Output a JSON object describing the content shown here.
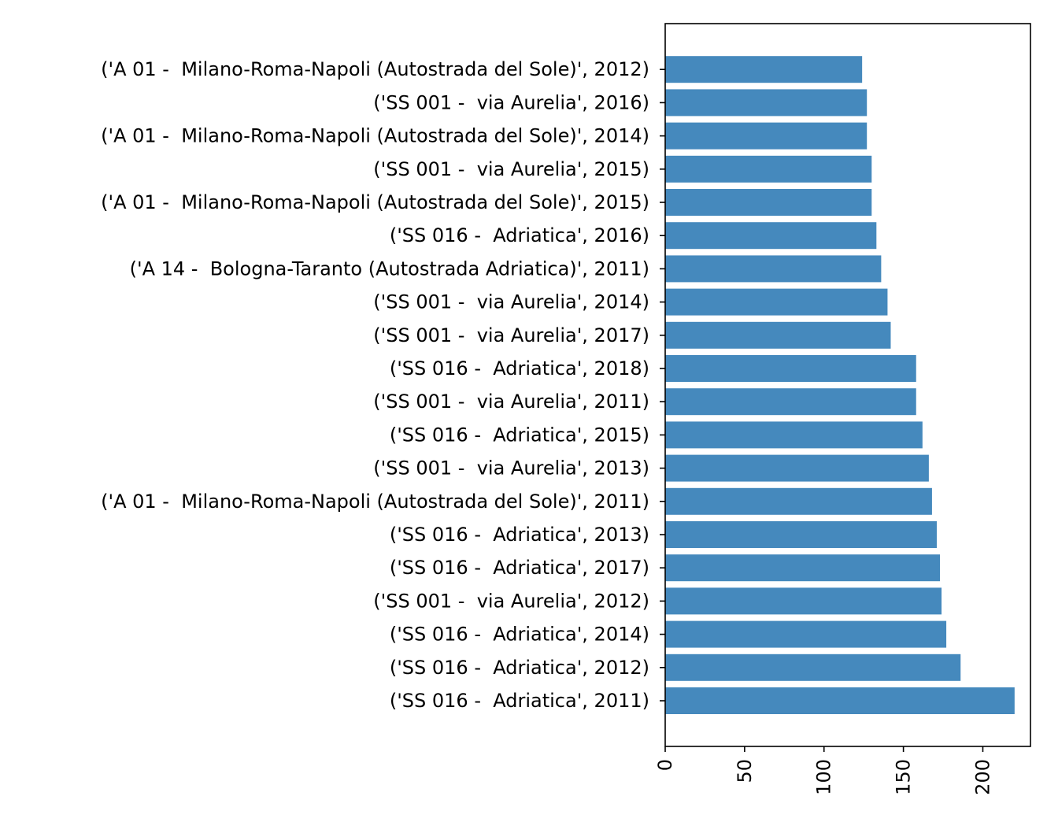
{
  "chart_data": {
    "type": "bar",
    "orientation": "horizontal",
    "title": "",
    "xlabel": "",
    "ylabel": "",
    "xlim": [
      0,
      230
    ],
    "xticks": [
      "0",
      "50",
      "100",
      "150",
      "200"
    ],
    "bar_color": "#4589bd",
    "grid": false,
    "categories": [
      "('SS 016 -  Adriatica', 2011)",
      "('SS 016 -  Adriatica', 2012)",
      "('SS 016 -  Adriatica', 2014)",
      "('SS 001 -  via Aurelia', 2012)",
      "('SS 016 -  Adriatica', 2017)",
      "('SS 016 -  Adriatica', 2013)",
      "('A 01 -  Milano-Roma-Napoli (Autostrada del Sole)', 2011)",
      "('SS 001 -  via Aurelia', 2013)",
      "('SS 016 -  Adriatica', 2015)",
      "('SS 001 -  via Aurelia', 2011)",
      "('SS 016 -  Adriatica', 2018)",
      "('SS 001 -  via Aurelia', 2017)",
      "('SS 001 -  via Aurelia', 2014)",
      "('A 14 -  Bologna-Taranto (Autostrada Adriatica)', 2011)",
      "('SS 016 -  Adriatica', 2016)",
      "('A 01 -  Milano-Roma-Napoli (Autostrada del Sole)', 2015)",
      "('SS 001 -  via Aurelia', 2015)",
      "('A 01 -  Milano-Roma-Napoli (Autostrada del Sole)', 2014)",
      "('SS 001 -  via Aurelia', 2016)",
      "('A 01 -  Milano-Roma-Napoli (Autostrada del Sole)', 2012)"
    ],
    "values": [
      220,
      186,
      177,
      174,
      173,
      171,
      168,
      166,
      162,
      158,
      158,
      142,
      140,
      136,
      133,
      130,
      130,
      127,
      127,
      124
    ]
  }
}
